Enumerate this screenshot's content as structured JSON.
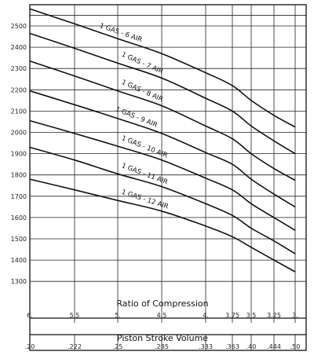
{
  "chart_data": {
    "type": "line",
    "title": "",
    "grid": true,
    "legend": "none",
    "xlabel": "Ratio of Compression",
    "x2label": "Piston Stroke Volume",
    "xlim": [
      6,
      3
    ],
    "ylim": [
      1300,
      2600
    ],
    "x_ticks": [
      "6.",
      "5.5",
      "5.",
      "4.5",
      "4.",
      "3.75",
      "3.5",
      "3.25",
      "3."
    ],
    "x_tick_values": [
      6,
      5.5,
      5,
      4.5,
      4,
      3.75,
      3.5,
      3.25,
      3
    ],
    "x2_ticks": [
      ".20",
      ".222",
      ".25",
      ".285",
      ".333",
      ".363",
      ".40",
      ".444",
      ".50"
    ],
    "y_ticks": [
      "1300",
      "1400",
      "1500",
      "1600",
      "1700",
      "1800",
      "1900",
      "2000",
      "2100",
      "2200",
      "2300",
      "2400",
      "2500"
    ],
    "y_tick_values": [
      1300,
      1400,
      1500,
      1600,
      1700,
      1800,
      1900,
      2000,
      2100,
      2200,
      2300,
      2400,
      2500
    ],
    "x": [
      6,
      5.5,
      5,
      4.5,
      4,
      3.75,
      3.5,
      3.25,
      3
    ],
    "series": [
      {
        "name": "1 GAS - 6 AIR",
        "values": [
          2580,
          2510,
          2440,
          2370,
          2280,
          2220,
          2150,
          2080,
          2025
        ]
      },
      {
        "name": "1 GAS - 7 AIR",
        "values": [
          2465,
          2395,
          2325,
          2255,
          2160,
          2100,
          2030,
          1960,
          1900
        ]
      },
      {
        "name": "1 GAS - 8 AIR",
        "values": [
          2335,
          2265,
          2195,
          2125,
          2030,
          1970,
          1900,
          1830,
          1775
        ]
      },
      {
        "name": "1 GAS - 9 AIR",
        "values": [
          2195,
          2130,
          2065,
          1995,
          1905,
          1850,
          1780,
          1710,
          1650
        ]
      },
      {
        "name": "1 GAS - 10 AIR",
        "values": [
          2055,
          1995,
          1935,
          1870,
          1785,
          1730,
          1665,
          1600,
          1540
        ]
      },
      {
        "name": "1 GAS - 11 AIR",
        "values": [
          1930,
          1870,
          1805,
          1745,
          1665,
          1610,
          1550,
          1490,
          1430
        ]
      },
      {
        "name": "1 GAS - 12 AIR",
        "values": [
          1780,
          1730,
          1680,
          1630,
          1560,
          1510,
          1460,
          1400,
          1345
        ]
      }
    ],
    "series_label_x": [
      4.8,
      4.55,
      4.55,
      4.62,
      4.55,
      4.55,
      4.55
    ]
  }
}
